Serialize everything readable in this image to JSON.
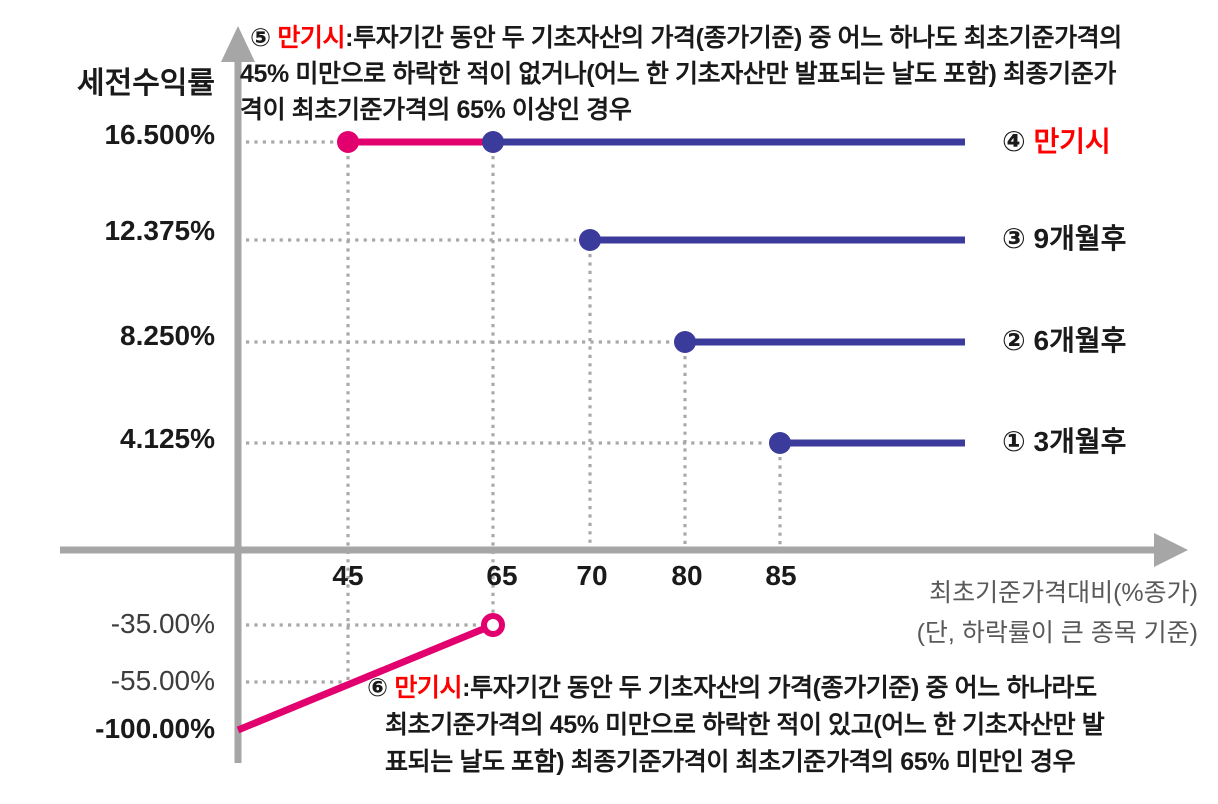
{
  "colors": {
    "blue": "#3b3b9b",
    "magenta": "#e2006f",
    "red": "#ff0000",
    "axis_gray": "#a6a6a6",
    "guide_gray": "#a9a9a9",
    "note_gray": "#595959",
    "text_black": "#1a1a1a"
  },
  "chart_data": {
    "type": "line",
    "ylabel": "세전수익률",
    "xlabel_lines": [
      "최초기준가격대비(%종가)",
      "(단, 하락률이 큰 종목 기준)"
    ],
    "y_ticks": [
      {
        "label": "16.500%",
        "value": 16.5
      },
      {
        "label": "12.375%",
        "value": 12.375
      },
      {
        "label": "8.250%",
        "value": 8.25
      },
      {
        "label": "4.125%",
        "value": 4.125
      },
      {
        "label": "-35.00%",
        "value": -35
      },
      {
        "label": "-55.00%",
        "value": -55
      },
      {
        "label": "-100.00%",
        "value": -100
      }
    ],
    "x_ticks": [
      {
        "label": "45",
        "value": 45
      },
      {
        "label": "65",
        "value": 65
      },
      {
        "label": "70",
        "value": 70
      },
      {
        "label": "80",
        "value": 80
      },
      {
        "label": "85",
        "value": 85
      }
    ],
    "series": [
      {
        "number": "④",
        "name": "만기시",
        "name_color": "#ff0000",
        "y": 16.5,
        "segments": [
          {
            "x_from": 45,
            "x_to": 65,
            "color_key": "magenta"
          },
          {
            "x_from": 65,
            "x_to": 100,
            "color_key": "blue"
          }
        ],
        "points": [
          {
            "x": 45,
            "style": "filled",
            "color_key": "magenta"
          },
          {
            "x": 65,
            "style": "filled",
            "color_key": "blue"
          }
        ]
      },
      {
        "number": "③",
        "name": "9개월후",
        "name_color": "#1a1a1a",
        "y": 12.375,
        "segments": [
          {
            "x_from": 70,
            "x_to": 100,
            "color_key": "blue"
          }
        ],
        "points": [
          {
            "x": 70,
            "style": "filled",
            "color_key": "blue"
          }
        ]
      },
      {
        "number": "②",
        "name": "6개월후",
        "name_color": "#1a1a1a",
        "y": 8.25,
        "segments": [
          {
            "x_from": 80,
            "x_to": 100,
            "color_key": "blue"
          }
        ],
        "points": [
          {
            "x": 80,
            "style": "filled",
            "color_key": "blue"
          }
        ]
      },
      {
        "number": "①",
        "name": "3개월후",
        "name_color": "#1a1a1a",
        "y": 4.125,
        "segments": [
          {
            "x_from": 85,
            "x_to": 100,
            "color_key": "blue"
          }
        ],
        "points": [
          {
            "x": 85,
            "style": "filled",
            "color_key": "blue"
          }
        ]
      }
    ],
    "loss_line": {
      "from": {
        "x": 0,
        "y": -100
      },
      "to": {
        "x": 65,
        "y": -35
      },
      "color_key": "magenta",
      "end_point_style": "open"
    }
  },
  "annotations": {
    "top": {
      "number": "⑤",
      "keyword": "만기시",
      "lines": [
        ":투자기간 동안 두 기초자산의 가격(종가기준) 중 어느 하나도 최초기준가격의",
        "45% 미만으로 하락한 적이 없거나(어느 한 기초자산만 발표되는 날도 포함) 최종기준가",
        "격이 최초기준가격의 65% 이상인 경우"
      ]
    },
    "bottom": {
      "number": "⑥",
      "keyword": "만기시",
      "lines": [
        ":투자기간 동안 두 기초자산의 가격(종가기준) 중 어느 하나라도",
        "최초기준가격의 45% 미만으로 하락한 적이 있고(어느 한 기초자산만 발",
        "표되는 날도 포함) 최종기준가격이 최초기준가격의 65% 미만인 경우"
      ]
    }
  }
}
